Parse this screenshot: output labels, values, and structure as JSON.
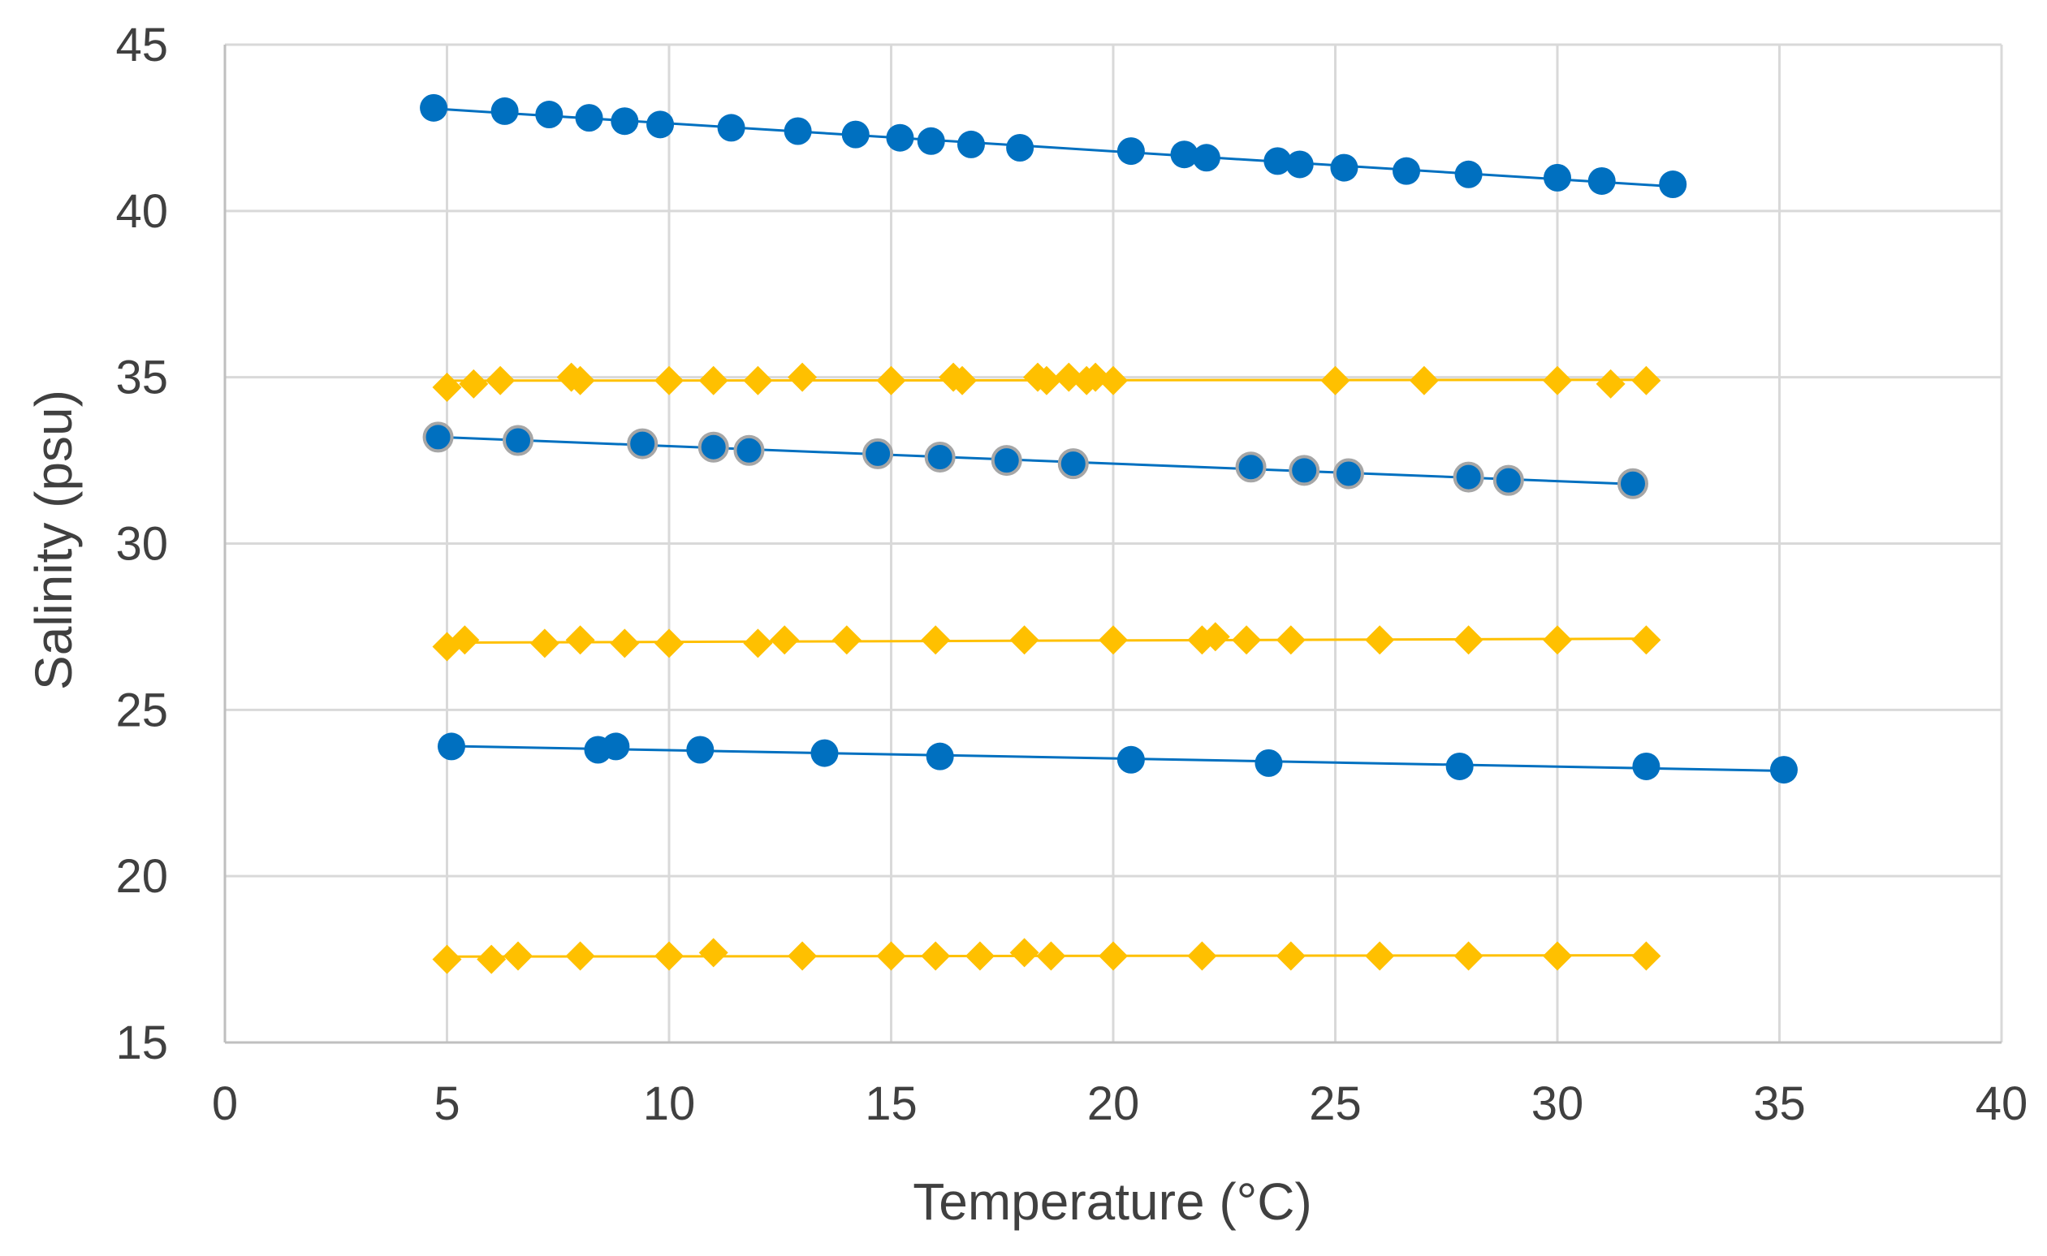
{
  "chart_data": {
    "type": "scatter",
    "title": "",
    "xlabel": "Temperature (°C)",
    "ylabel": "Salinity (psu)",
    "xlim": [
      0,
      40
    ],
    "ylim": [
      15,
      45
    ],
    "xticks": [
      0,
      5,
      10,
      15,
      20,
      25,
      30,
      35,
      40
    ],
    "yticks": [
      15,
      20,
      25,
      30,
      35,
      40,
      45
    ],
    "grid": true,
    "legend": "none",
    "colors": {
      "circle": "#0070C0",
      "diamond": "#FFC000",
      "gridline": "#D9D9D9",
      "axis": "#BFBFBF",
      "text": "#404040"
    },
    "series": [
      {
        "marker": "circle",
        "color": "#0070C0",
        "trendline": true,
        "points": [
          [
            4.7,
            43.1
          ],
          [
            6.3,
            43.0
          ],
          [
            7.3,
            42.9
          ],
          [
            8.2,
            42.8
          ],
          [
            9.0,
            42.7
          ],
          [
            9.8,
            42.6
          ],
          [
            11.4,
            42.5
          ],
          [
            12.9,
            42.4
          ],
          [
            14.2,
            42.3
          ],
          [
            15.2,
            42.2
          ],
          [
            15.9,
            42.1
          ],
          [
            16.8,
            42.0
          ],
          [
            17.9,
            41.9
          ],
          [
            20.4,
            41.8
          ],
          [
            21.6,
            41.7
          ],
          [
            22.1,
            41.6
          ],
          [
            23.7,
            41.5
          ],
          [
            24.2,
            41.4
          ],
          [
            25.2,
            41.3
          ],
          [
            26.6,
            41.2
          ],
          [
            28.0,
            41.1
          ],
          [
            30.0,
            41.0
          ],
          [
            31.0,
            40.9
          ],
          [
            32.6,
            40.8
          ]
        ]
      },
      {
        "marker": "diamond",
        "color": "#FFC000",
        "trendline": true,
        "points": [
          [
            5.0,
            34.7
          ],
          [
            5.6,
            34.8
          ],
          [
            6.2,
            34.9
          ],
          [
            7.8,
            35.0
          ],
          [
            8.0,
            34.9
          ],
          [
            10.0,
            34.9
          ],
          [
            11.0,
            34.9
          ],
          [
            12.0,
            34.9
          ],
          [
            13.0,
            35.0
          ],
          [
            15.0,
            34.9
          ],
          [
            16.4,
            35.0
          ],
          [
            16.6,
            34.9
          ],
          [
            18.3,
            35.0
          ],
          [
            18.5,
            34.9
          ],
          [
            19.0,
            35.0
          ],
          [
            19.4,
            34.9
          ],
          [
            19.6,
            35.0
          ],
          [
            20.0,
            34.9
          ],
          [
            25.0,
            34.9
          ],
          [
            27.0,
            34.9
          ],
          [
            30.0,
            34.9
          ],
          [
            31.2,
            34.8
          ],
          [
            32.0,
            34.9
          ]
        ]
      },
      {
        "marker": "circle",
        "color": "#0070C0",
        "stroke": "#A6A6A6",
        "trendline": true,
        "points": [
          [
            4.8,
            33.2
          ],
          [
            6.6,
            33.1
          ],
          [
            9.4,
            33.0
          ],
          [
            11.0,
            32.9
          ],
          [
            11.8,
            32.8
          ],
          [
            14.7,
            32.7
          ],
          [
            16.1,
            32.6
          ],
          [
            17.6,
            32.5
          ],
          [
            19.1,
            32.4
          ],
          [
            23.1,
            32.3
          ],
          [
            24.3,
            32.2
          ],
          [
            25.3,
            32.1
          ],
          [
            28.0,
            32.0
          ],
          [
            28.9,
            31.9
          ],
          [
            31.7,
            31.8
          ]
        ]
      },
      {
        "marker": "diamond",
        "color": "#FFC000",
        "trendline": true,
        "points": [
          [
            5.0,
            26.9
          ],
          [
            5.4,
            27.1
          ],
          [
            7.2,
            27.0
          ],
          [
            8.0,
            27.1
          ],
          [
            9.0,
            27.0
          ],
          [
            10.0,
            27.0
          ],
          [
            12.0,
            27.0
          ],
          [
            12.6,
            27.1
          ],
          [
            14.0,
            27.1
          ],
          [
            16.0,
            27.1
          ],
          [
            18.0,
            27.1
          ],
          [
            20.0,
            27.1
          ],
          [
            22.0,
            27.1
          ],
          [
            22.3,
            27.2
          ],
          [
            23.0,
            27.1
          ],
          [
            24.0,
            27.1
          ],
          [
            26.0,
            27.1
          ],
          [
            28.0,
            27.1
          ],
          [
            30.0,
            27.1
          ],
          [
            32.0,
            27.1
          ]
        ]
      },
      {
        "marker": "circle",
        "color": "#0070C0",
        "trendline": true,
        "points": [
          [
            5.1,
            23.9
          ],
          [
            8.4,
            23.8
          ],
          [
            8.8,
            23.9
          ],
          [
            10.7,
            23.8
          ],
          [
            13.5,
            23.7
          ],
          [
            16.1,
            23.6
          ],
          [
            20.4,
            23.5
          ],
          [
            23.5,
            23.4
          ],
          [
            27.8,
            23.3
          ],
          [
            32.0,
            23.3
          ],
          [
            35.1,
            23.2
          ]
        ]
      },
      {
        "marker": "diamond",
        "color": "#FFC000",
        "trendline": true,
        "points": [
          [
            5.0,
            17.5
          ],
          [
            6.0,
            17.5
          ],
          [
            6.6,
            17.6
          ],
          [
            8.0,
            17.6
          ],
          [
            10.0,
            17.6
          ],
          [
            11.0,
            17.7
          ],
          [
            13.0,
            17.6
          ],
          [
            15.0,
            17.6
          ],
          [
            16.0,
            17.6
          ],
          [
            17.0,
            17.6
          ],
          [
            18.0,
            17.7
          ],
          [
            18.6,
            17.6
          ],
          [
            20.0,
            17.6
          ],
          [
            22.0,
            17.6
          ],
          [
            24.0,
            17.6
          ],
          [
            26.0,
            17.6
          ],
          [
            28.0,
            17.6
          ],
          [
            30.0,
            17.6
          ],
          [
            32.0,
            17.6
          ]
        ]
      }
    ]
  }
}
